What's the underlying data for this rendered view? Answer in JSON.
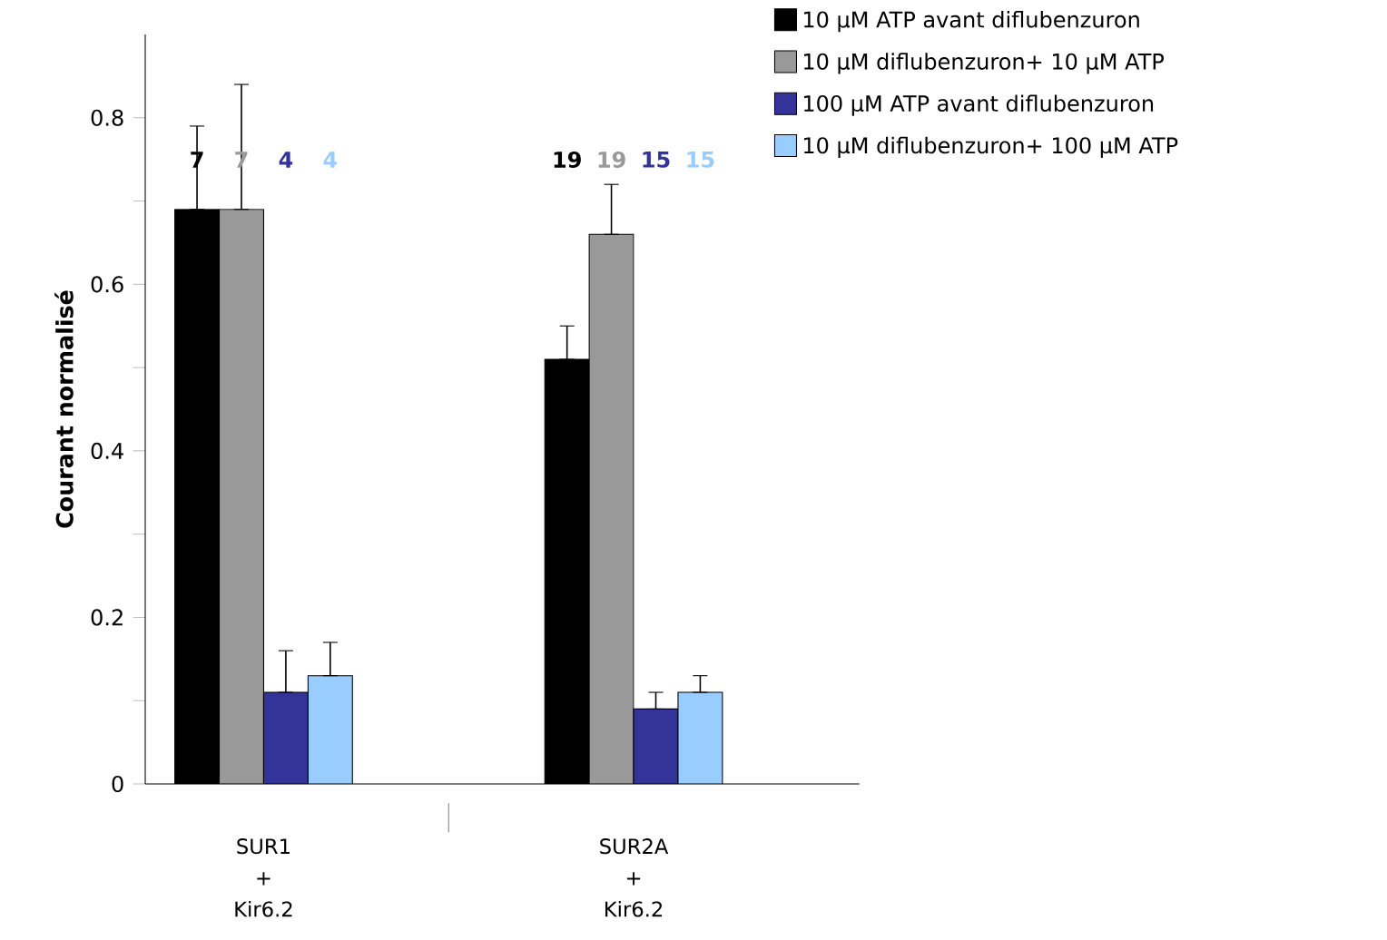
{
  "chart_data": {
    "type": "bar",
    "ylabel": "Courant normalisé",
    "categories": [
      "SUR1 + Kir6.2",
      "SUR2A + Kir6.2"
    ],
    "ylim": [
      0,
      0.9
    ],
    "yticks": [
      0,
      {
        "value": 0.1,
        "label": null
      },
      0.2,
      {
        "value": 0.3,
        "label": null
      },
      0.4,
      {
        "value": 0.5,
        "label": null
      },
      0.6,
      {
        "value": 0.7,
        "label": null
      },
      0.8
    ],
    "legend": "top right",
    "annotations": [
      "7",
      "7",
      "4",
      "4",
      "19",
      "19",
      "15",
      "15"
    ],
    "series": [
      {
        "name": "10 µM ATP avant diflubenzuron",
        "color": "#000000",
        "values": [
          0.69,
          0.51
        ],
        "errors": [
          [
            0.69,
            0.79
          ],
          [
            0.51,
            0.55
          ]
        ]
      },
      {
        "name": "10 µM diflubenzuron+ 10 µM ATP",
        "color": "#999999",
        "values": [
          0.69,
          0.66
        ],
        "errors": [
          [
            0.69,
            0.84
          ],
          [
            0.66,
            0.72
          ]
        ]
      },
      {
        "name": "100 µM ATP avant diflubenzuron",
        "color": "#333399",
        "values": [
          0.11,
          0.09
        ],
        "errors": [
          [
            0.11,
            0.16
          ],
          [
            0.09,
            0.11
          ]
        ]
      },
      {
        "name": "10 µM diflubenzuron+ 100 µM ATP",
        "color": "#99ccff",
        "values": [
          0.13,
          0.11
        ],
        "errors": [
          [
            0.13,
            0.17
          ],
          [
            0.11,
            0.13
          ]
        ]
      }
    ]
  }
}
